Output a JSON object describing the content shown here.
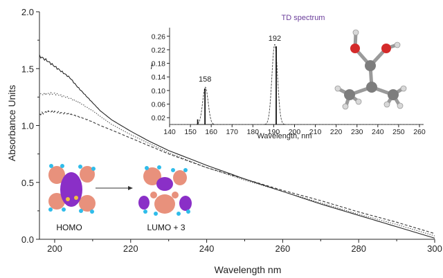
{
  "chart_data": [
    {
      "type": "line",
      "title": "",
      "xlabel": "Wavelength nm",
      "ylabel": "Absorbance Units",
      "xlim": [
        196,
        300
      ],
      "ylim": [
        0,
        2.0
      ],
      "xticks": [
        "200",
        "220",
        "240",
        "260",
        "280",
        "300"
      ],
      "yticks": [
        "0.0",
        "0.5",
        "1.0",
        "1.5",
        "2.0"
      ],
      "grid": false,
      "legend": "none",
      "series": [
        {
          "style": "solid",
          "color": "#222222",
          "x": [
            196,
            198,
            200,
            202,
            204,
            206,
            208,
            210,
            212,
            215,
            220,
            225,
            230,
            240,
            250,
            260,
            270,
            280,
            290,
            300
          ],
          "y": [
            1.61,
            1.57,
            1.52,
            1.47,
            1.42,
            1.34,
            1.27,
            1.2,
            1.13,
            1.05,
            0.95,
            0.86,
            0.78,
            0.65,
            0.53,
            0.42,
            0.31,
            0.21,
            0.11,
            0.01
          ]
        },
        {
          "style": "dotted",
          "color": "#555555",
          "x": [
            196,
            198,
            200,
            202,
            204,
            206,
            208,
            210,
            212,
            215,
            220,
            225,
            230,
            240,
            250,
            260,
            270,
            280,
            290,
            300
          ],
          "y": [
            1.27,
            1.28,
            1.28,
            1.26,
            1.24,
            1.21,
            1.17,
            1.13,
            1.08,
            1.01,
            0.92,
            0.84,
            0.76,
            0.63,
            0.52,
            0.42,
            0.32,
            0.22,
            0.13,
            0.03
          ]
        },
        {
          "style": "dashed",
          "color": "#333333",
          "x": [
            196,
            198,
            200,
            202,
            204,
            206,
            208,
            210,
            212,
            215,
            220,
            225,
            230,
            240,
            250,
            260,
            270,
            280,
            290,
            300
          ],
          "y": [
            1.1,
            1.12,
            1.12,
            1.11,
            1.1,
            1.08,
            1.06,
            1.03,
            1.0,
            0.96,
            0.89,
            0.82,
            0.75,
            0.63,
            0.53,
            0.43,
            0.34,
            0.24,
            0.15,
            0.05
          ]
        }
      ]
    },
    {
      "type": "line",
      "title": "TD spectrum",
      "title_color": "#6a3d9a",
      "xlabel": "Wavelength, nm",
      "ylabel": "f",
      "xlim": [
        140,
        262
      ],
      "ylim": [
        0,
        0.285
      ],
      "xticks": [
        "140",
        "150",
        "160",
        "170",
        "180",
        "190",
        "200",
        "210",
        "220",
        "230",
        "240",
        "250",
        "260"
      ],
      "yticks": [
        "0.02",
        "0.06",
        "0.10",
        "0.14",
        "0.18",
        "0.22",
        "0.26"
      ],
      "peak_labels": [
        {
          "label": "158",
          "x": 157,
          "y": 0.12
        },
        {
          "label": "192",
          "x": 190.5,
          "y": 0.24
        }
      ],
      "envelopes": [
        {
          "center": 157.2,
          "height": 0.11,
          "width": 1.3
        },
        {
          "center": 190.5,
          "height": 0.236,
          "width": 1.35
        }
      ],
      "sticks": [
        {
          "x": 153.5,
          "f": 0.015
        },
        {
          "x": 157,
          "f": 0.106
        },
        {
          "x": 191.2,
          "f": 0.23
        }
      ]
    }
  ],
  "orbitals": {
    "homo_label": "HOMO",
    "lumo_label": "LUMO + 3"
  },
  "colors": {
    "axis": "#222222",
    "lobe_positive": "#e8917c",
    "lobe_negative": "#8a2fc7",
    "atom_h": "#2fbcea",
    "atom_o": "#d42a2a",
    "atom_c": "#7d7d7d"
  }
}
